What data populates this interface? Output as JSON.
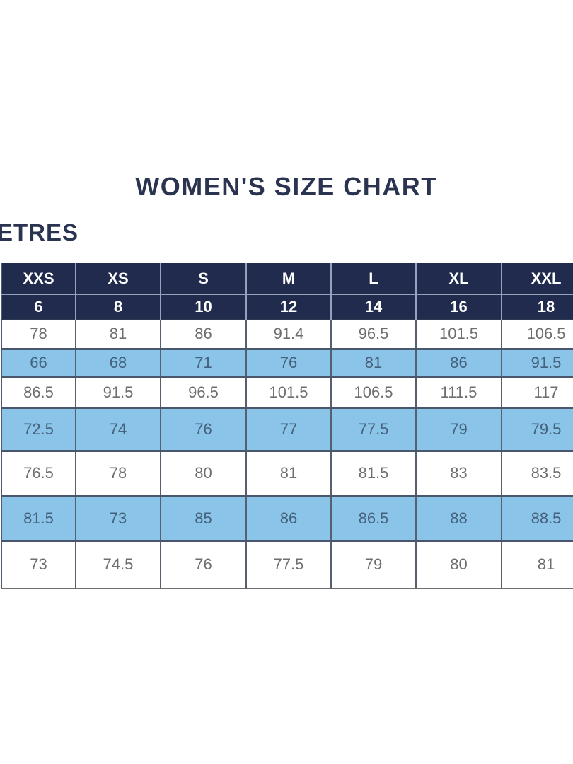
{
  "title": "WOMEN'S SIZE CHART",
  "unit_label": "ETRES",
  "colors": {
    "header_bg_navy": "#202b4d",
    "header_text": "#ffffff",
    "title_text": "#2a3450",
    "highlight_row_bg": "#8ac4e8",
    "highlight_row_text": "#46617c",
    "data_row_text": "#6e6e6e"
  },
  "chart_data": {
    "type": "table",
    "title": "WOMEN'S SIZE CHART",
    "unit_label_visible": "ETRES",
    "header_rows": [
      {
        "name": "size_labels",
        "cells": [
          "XXS",
          "XS",
          "S",
          "M",
          "L",
          "XL",
          "XXL"
        ]
      },
      {
        "name": "size_numbers",
        "cells": [
          6,
          8,
          10,
          12,
          14,
          16,
          18
        ]
      }
    ],
    "body_rows": [
      {
        "highlighted": false,
        "cells": [
          78,
          81,
          86,
          91.4,
          96.5,
          101.5,
          106.5
        ]
      },
      {
        "highlighted": true,
        "cells": [
          66,
          68,
          71,
          76,
          81,
          86,
          91.5
        ]
      },
      {
        "highlighted": false,
        "cells": [
          86.5,
          91.5,
          96.5,
          101.5,
          106.5,
          111.5,
          117
        ]
      },
      {
        "highlighted": true,
        "cells": [
          72.5,
          74,
          76,
          77,
          77.5,
          79,
          79.5
        ]
      },
      {
        "highlighted": false,
        "cells": [
          76.5,
          78,
          80,
          81,
          81.5,
          83,
          83.5
        ]
      },
      {
        "highlighted": true,
        "cells": [
          81.5,
          73,
          85,
          86,
          86.5,
          88,
          88.5
        ]
      },
      {
        "highlighted": false,
        "cells": [
          73,
          74.5,
          76,
          77.5,
          79,
          80,
          81
        ]
      }
    ],
    "layout_hints": {
      "first_and_last_columns_cropped": true,
      "alternating_highlighted_rows": true
    }
  }
}
